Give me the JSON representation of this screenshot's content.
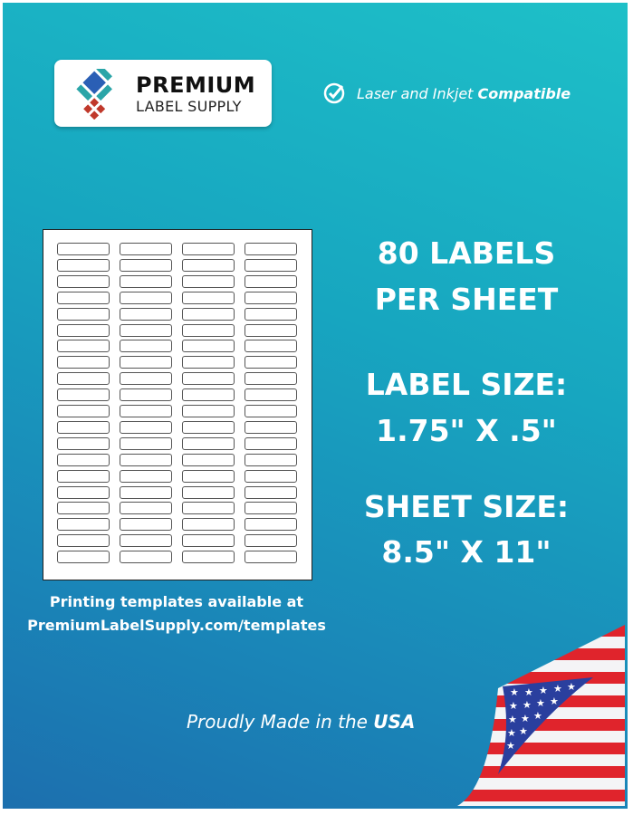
{
  "brand": {
    "line1": "PREMIUM",
    "line2": "LABEL SUPPLY"
  },
  "compatibility": {
    "prefix": "Laser and Inkjet ",
    "emphasis": "Compatible"
  },
  "specs": {
    "labels_line1": "80 LABELS",
    "labels_line2": "PER SHEET",
    "label_size_title": "LABEL SIZE:",
    "label_size_value": "1.75\" X .5\"",
    "sheet_size_title": "SHEET SIZE:",
    "sheet_size_value": "8.5\" X 11\""
  },
  "templates": {
    "line1": "Printing templates available at",
    "line2": "PremiumLabelSupply.com/templates"
  },
  "origin": {
    "prefix": "Proudly Made in the ",
    "emphasis": "USA"
  },
  "sheet_layout": {
    "columns": 4,
    "rows": 20
  },
  "colors": {
    "bg_top": "#1ec0c8",
    "bg_bottom": "#1c6fae",
    "logo_blue": "#2a5fb5",
    "logo_teal": "#2aa5a8",
    "logo_red": "#c0392b"
  }
}
